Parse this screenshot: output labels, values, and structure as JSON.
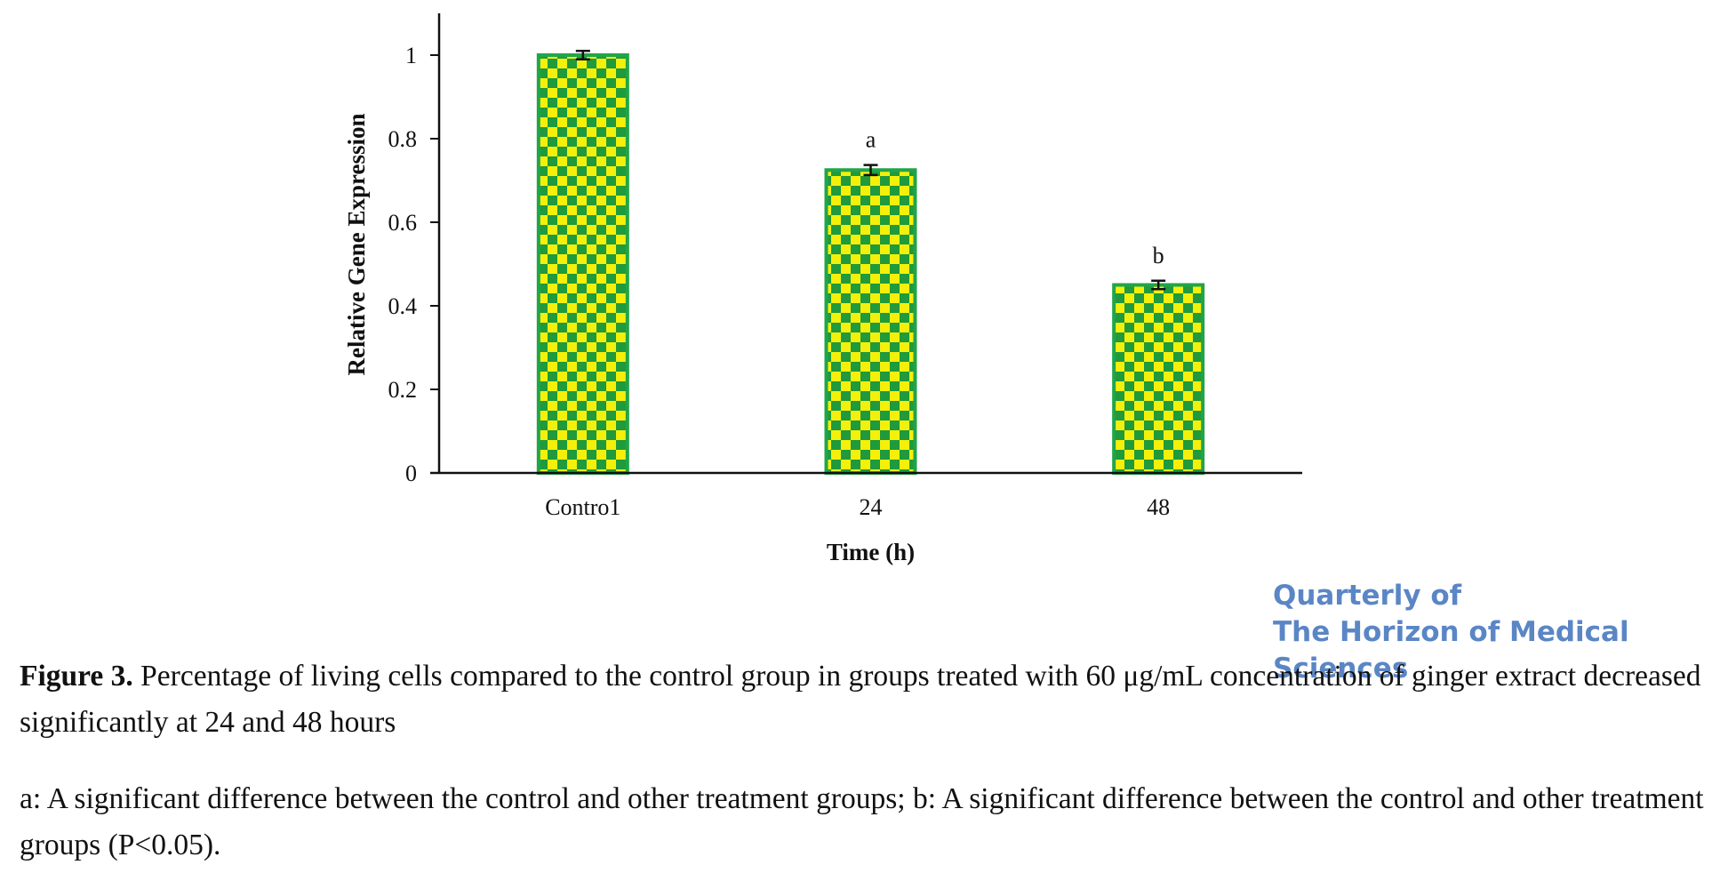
{
  "chart_data": {
    "type": "bar",
    "categories": [
      "Contro1",
      "24",
      "48"
    ],
    "values": [
      1.0,
      0.725,
      0.45
    ],
    "errors": [
      0.01,
      0.012,
      0.01
    ],
    "annotations": [
      "",
      "a",
      "b"
    ],
    "xlabel": "Time (h)",
    "ylabel": "Relative  Gene Expression",
    "ylim": [
      0,
      1.1
    ],
    "yticks": [
      0,
      0.2,
      0.4,
      0.6,
      0.8,
      1
    ],
    "ytick_labels": [
      "0",
      "0.2",
      "0.4",
      "0.6",
      "0.8",
      "1"
    ],
    "grid": false,
    "legend": "none",
    "bar_fill": "#f5f00a",
    "bar_pattern": "#1f9a3c",
    "bar_edge": "#21a548"
  },
  "journal": {
    "line1": "Quarterly of",
    "line2": "The Horizon of Medical Sciences"
  },
  "caption": {
    "label": "Figure 3.",
    "text": " Percentage of living cells compared to the control group in groups treated with 60 μg/mL concentration of ginger extract decreased significantly at 24 and 48 hours"
  },
  "footnote": "a: A significant difference between the control and other treatment groups; b: A significant difference between the control and other treatment groups (P<0.05)."
}
